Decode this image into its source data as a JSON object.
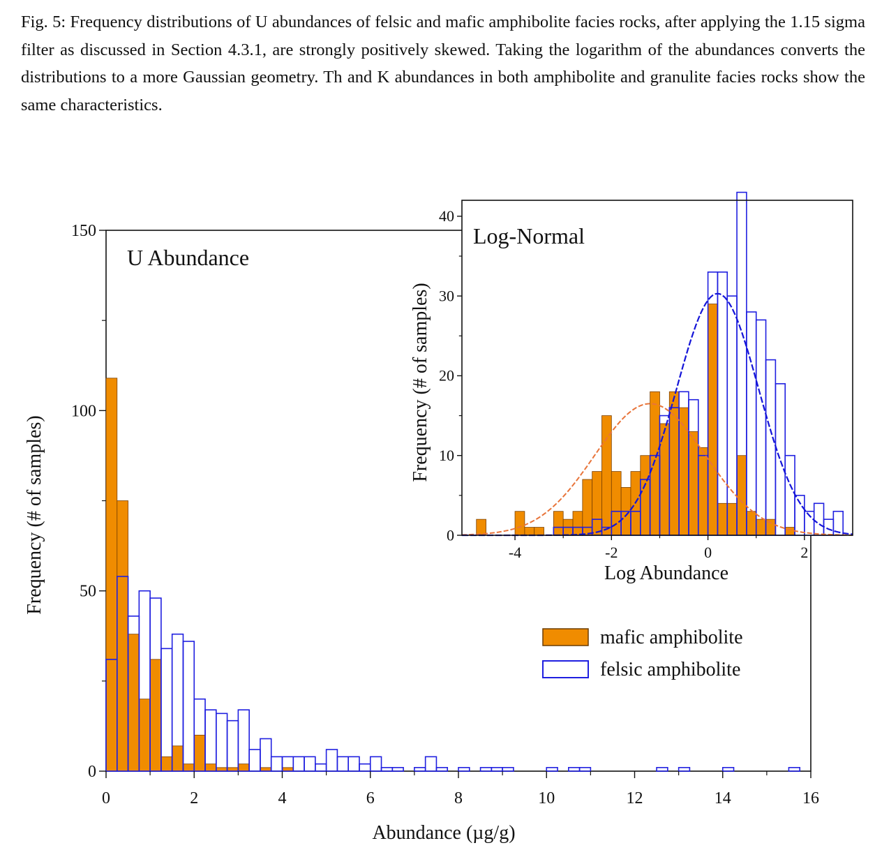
{
  "caption": "Fig. 5: Frequency distributions of U abundances of felsic and mafic amphibolite facies rocks, after applying the 1.15 sigma filter as discussed in Section 4.3.1, are strongly positively skewed. Taking the logarithm of the abundances converts the distributions to a more Gaussian geometry. Th and K abundances in both amphibolite and granulite facies rocks show the same characteristics.",
  "colors": {
    "mafic": "#f08c00",
    "felsic": "#1f1fe0",
    "mafic_curve": "#e8743a",
    "felsic_curve": "#1414d8"
  },
  "chart_data": [
    {
      "type": "bar",
      "title": "U Abundance",
      "xlabel": "Abundance (µg/g)",
      "ylabel": "Frequency (# of samples)",
      "xlim": [
        0,
        16
      ],
      "ylim": [
        0,
        150
      ],
      "xticks": [
        0,
        2,
        4,
        6,
        8,
        10,
        12,
        14,
        16
      ],
      "yticks": [
        0,
        50,
        100,
        150
      ],
      "bin_width": 0.25,
      "legend_position": "bottom-right",
      "series": [
        {
          "name": "mafic amphibolite",
          "style": "filled",
          "bins": [
            [
              0,
              109
            ],
            [
              0.25,
              75
            ],
            [
              0.5,
              38
            ],
            [
              0.75,
              20
            ],
            [
              1,
              31
            ],
            [
              1.25,
              4
            ],
            [
              1.5,
              7
            ],
            [
              1.75,
              2
            ],
            [
              2,
              10
            ],
            [
              2.25,
              2
            ],
            [
              2.5,
              1
            ],
            [
              2.75,
              1
            ],
            [
              3,
              2
            ],
            [
              3.5,
              1
            ],
            [
              4,
              1
            ]
          ]
        },
        {
          "name": "felsic amphibolite",
          "style": "outline",
          "bins": [
            [
              0,
              31
            ],
            [
              0.25,
              54
            ],
            [
              0.5,
              43
            ],
            [
              0.75,
              50
            ],
            [
              1,
              48
            ],
            [
              1.25,
              34
            ],
            [
              1.5,
              38
            ],
            [
              1.75,
              36
            ],
            [
              2,
              20
            ],
            [
              2.25,
              17
            ],
            [
              2.5,
              16
            ],
            [
              2.75,
              14
            ],
            [
              3,
              17
            ],
            [
              3.25,
              6
            ],
            [
              3.5,
              9
            ],
            [
              3.75,
              4
            ],
            [
              4,
              4
            ],
            [
              4.25,
              4
            ],
            [
              4.5,
              4
            ],
            [
              4.75,
              2
            ],
            [
              5,
              6
            ],
            [
              5.25,
              4
            ],
            [
              5.5,
              4
            ],
            [
              5.75,
              2
            ],
            [
              6,
              4
            ],
            [
              6.25,
              1
            ],
            [
              6.5,
              1
            ],
            [
              7,
              1
            ],
            [
              7.25,
              4
            ],
            [
              7.5,
              1
            ],
            [
              8,
              1
            ],
            [
              8.5,
              1
            ],
            [
              8.75,
              1
            ],
            [
              9,
              1
            ],
            [
              10,
              1
            ],
            [
              10.5,
              1
            ],
            [
              10.75,
              1
            ],
            [
              12.5,
              1
            ],
            [
              13,
              1
            ],
            [
              14,
              1
            ],
            [
              15.5,
              1
            ]
          ]
        }
      ]
    },
    {
      "type": "bar",
      "title": "Log-Normal",
      "xlabel": "Log Abundance",
      "ylabel": "Frequency (# of samples)",
      "xlim": [
        -5.1,
        3.0
      ],
      "ylim": [
        0,
        42
      ],
      "xticks": [
        -4,
        -2,
        0,
        2
      ],
      "yticks": [
        0,
        10,
        20,
        30,
        40
      ],
      "bin_width": 0.2,
      "series": [
        {
          "name": "mafic amphibolite",
          "style": "filled",
          "bins": [
            [
              -4.8,
              2
            ],
            [
              -4,
              3
            ],
            [
              -3.8,
              1
            ],
            [
              -3.6,
              1
            ],
            [
              -3.2,
              3
            ],
            [
              -3,
              2
            ],
            [
              -2.8,
              3
            ],
            [
              -2.6,
              7
            ],
            [
              -2.4,
              8
            ],
            [
              -2.2,
              15
            ],
            [
              -2,
              8
            ],
            [
              -1.8,
              6
            ],
            [
              -1.6,
              8
            ],
            [
              -1.4,
              10
            ],
            [
              -1.2,
              18
            ],
            [
              -1,
              14
            ],
            [
              -0.8,
              18
            ],
            [
              -0.6,
              16
            ],
            [
              -0.4,
              13
            ],
            [
              -0.2,
              11
            ],
            [
              0,
              29
            ],
            [
              0.2,
              4
            ],
            [
              0.4,
              4
            ],
            [
              0.6,
              10
            ],
            [
              0.8,
              3
            ],
            [
              1,
              2
            ],
            [
              1.2,
              2
            ],
            [
              1.6,
              1
            ]
          ]
        },
        {
          "name": "felsic amphibolite",
          "style": "outline",
          "bins": [
            [
              -3.2,
              1
            ],
            [
              -3,
              1
            ],
            [
              -2.8,
              1
            ],
            [
              -2.6,
              1
            ],
            [
              -2.4,
              2
            ],
            [
              -2.2,
              1
            ],
            [
              -2,
              3
            ],
            [
              -1.8,
              3
            ],
            [
              -1.6,
              3
            ],
            [
              -1.4,
              7
            ],
            [
              -1.2,
              10
            ],
            [
              -1,
              15
            ],
            [
              -0.8,
              16
            ],
            [
              -0.6,
              18
            ],
            [
              -0.4,
              17
            ],
            [
              -0.2,
              10
            ],
            [
              0,
              33
            ],
            [
              0.2,
              33
            ],
            [
              0.4,
              30
            ],
            [
              0.6,
              43
            ],
            [
              0.8,
              28
            ],
            [
              1,
              27
            ],
            [
              1.2,
              22
            ],
            [
              1.4,
              19
            ],
            [
              1.6,
              10
            ],
            [
              1.8,
              5
            ],
            [
              2,
              3
            ],
            [
              2.2,
              4
            ],
            [
              2.4,
              2
            ],
            [
              2.6,
              3
            ]
          ]
        }
      ],
      "fits": [
        {
          "name": "mafic amphibolite",
          "mean": -1.2,
          "sd": 1.15,
          "peak": 16.5
        },
        {
          "name": "felsic amphibolite",
          "mean": 0.2,
          "sd": 0.85,
          "peak": 30.3
        }
      ]
    }
  ]
}
